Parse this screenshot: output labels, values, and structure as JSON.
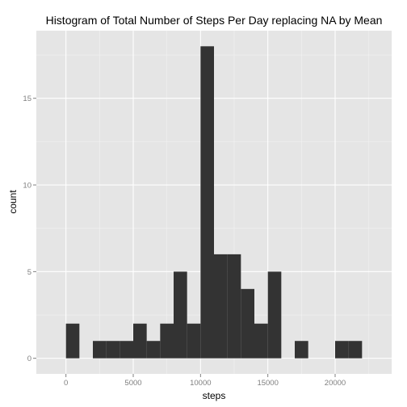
{
  "chart_data": {
    "type": "bar",
    "title": "Histogram of Total Number of Steps Per Day replacing NA by Mean",
    "xlabel": "steps",
    "ylabel": "count",
    "bin_width": 1000,
    "bins": [
      {
        "x0": 0,
        "x1": 1000,
        "count": 2
      },
      {
        "x0": 1000,
        "x1": 2000,
        "count": 0
      },
      {
        "x0": 2000,
        "x1": 3000,
        "count": 1
      },
      {
        "x0": 3000,
        "x1": 4000,
        "count": 1
      },
      {
        "x0": 4000,
        "x1": 5000,
        "count": 1
      },
      {
        "x0": 5000,
        "x1": 6000,
        "count": 2
      },
      {
        "x0": 6000,
        "x1": 7000,
        "count": 1
      },
      {
        "x0": 7000,
        "x1": 8000,
        "count": 2
      },
      {
        "x0": 8000,
        "x1": 9000,
        "count": 5
      },
      {
        "x0": 9000,
        "x1": 10000,
        "count": 2
      },
      {
        "x0": 10000,
        "x1": 11000,
        "count": 18
      },
      {
        "x0": 11000,
        "x1": 12000,
        "count": 6
      },
      {
        "x0": 12000,
        "x1": 13000,
        "count": 6
      },
      {
        "x0": 13000,
        "x1": 14000,
        "count": 4
      },
      {
        "x0": 14000,
        "x1": 15000,
        "count": 2
      },
      {
        "x0": 15000,
        "x1": 16000,
        "count": 5
      },
      {
        "x0": 16000,
        "x1": 17000,
        "count": 0
      },
      {
        "x0": 17000,
        "x1": 18000,
        "count": 1
      },
      {
        "x0": 18000,
        "x1": 19000,
        "count": 0
      },
      {
        "x0": 19000,
        "x1": 20000,
        "count": 0
      },
      {
        "x0": 20000,
        "x1": 21000,
        "count": 1
      },
      {
        "x0": 21000,
        "x1": 22000,
        "count": 1
      }
    ],
    "xlim": [
      -2200,
      24200
    ],
    "ylim": [
      -0.9,
      18.9
    ],
    "x_ticks": [
      0,
      5000,
      10000,
      15000,
      20000
    ],
    "x_tick_labels": [
      "0",
      "5000",
      "10000",
      "15000",
      "20000"
    ],
    "y_ticks": [
      0,
      5,
      10,
      15
    ],
    "y_tick_labels": [
      "0",
      "5",
      "10",
      "15"
    ],
    "grid": true,
    "colors": {
      "panel": "#e5e5e5",
      "grid_major": "#ffffff",
      "grid_minor": "#f2f2f2",
      "bar": "#333333",
      "tick_label": "#7f7f7f",
      "tick_mark": "#7f7f7f"
    }
  }
}
